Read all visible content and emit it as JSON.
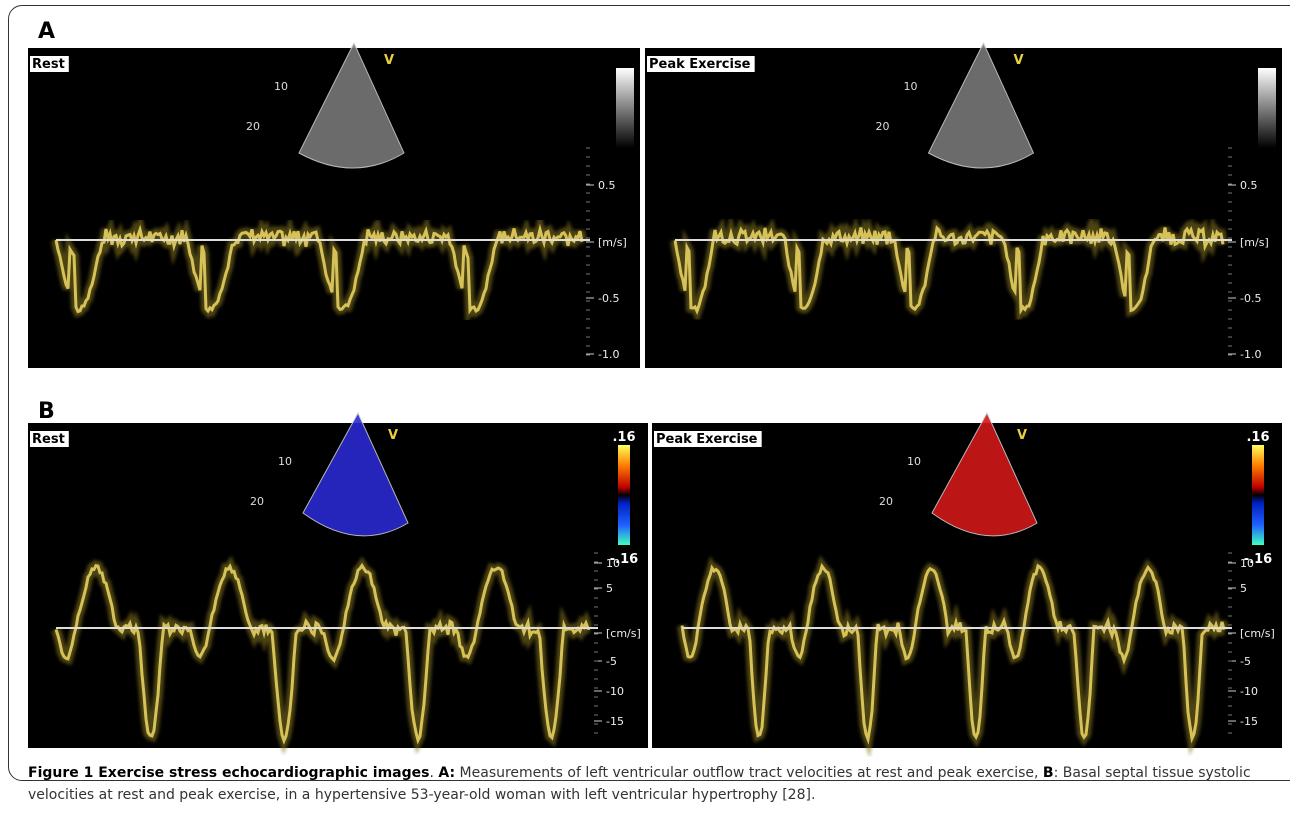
{
  "panels": [
    {
      "label": "A",
      "images": [
        {
          "label": "Rest",
          "markers": [
            "V",
            "10",
            "20"
          ],
          "scale": [
            "0.5",
            "[m/s]",
            "-0.5",
            "-1.0"
          ]
        },
        {
          "label": "Peak Exercise",
          "markers": [
            "V",
            "10",
            "20"
          ],
          "scale": [
            "0.5",
            "[m/s]",
            "-0.5",
            "-1.0"
          ]
        }
      ]
    },
    {
      "label": "B",
      "images": [
        {
          "label": "Rest",
          "markers": [
            "V",
            "10",
            "20"
          ],
          "colorbar": [
            ".16",
            "-.16"
          ],
          "scale": [
            "10",
            "5",
            "[cm/s]",
            "-5",
            "-10",
            "-15"
          ]
        },
        {
          "label": "Peak Exercise",
          "markers": [
            "V",
            "10",
            "20"
          ],
          "colorbar": [
            ".16",
            "-.16"
          ],
          "scale": [
            "10",
            "5",
            "[cm/s]",
            "-5",
            "-10",
            "-15"
          ]
        }
      ]
    }
  ],
  "caption": {
    "parts": [
      "Figure 1 Exercise stress echocardiographic images",
      ". ",
      "A:",
      " Measurements of left ventricular outflow tract velocities at rest and peak exercise, ",
      "B",
      ": Basal septal tissue systolic velocities at rest and peak exercise, in a hypertensive 53-year-old woman with left ventricular hypertrophy [28]."
    ]
  }
}
